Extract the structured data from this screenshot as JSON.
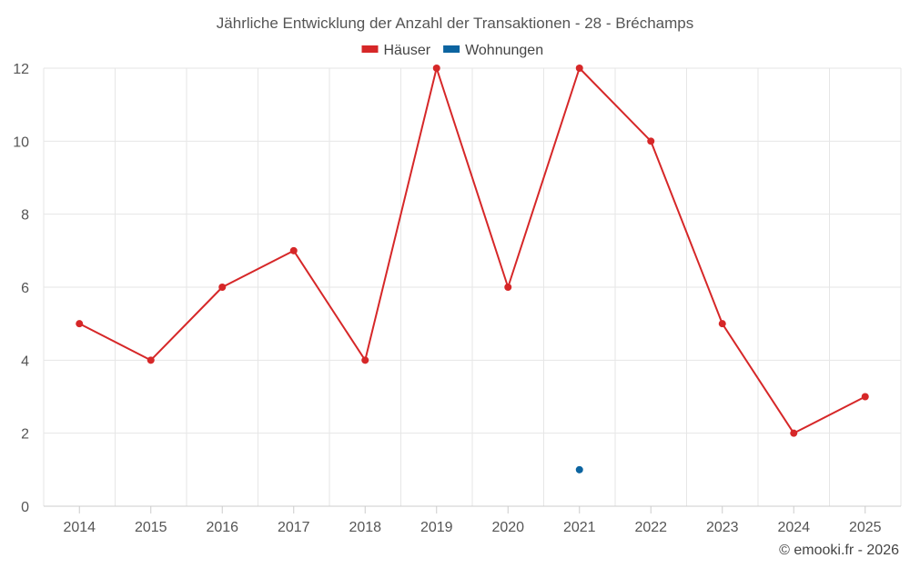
{
  "chart_data": {
    "type": "line",
    "title": "Jährliche Entwicklung der Anzahl der Transaktionen - 28 - Bréchamps",
    "xlabel": "",
    "ylabel": "",
    "categories": [
      "2014",
      "2015",
      "2016",
      "2017",
      "2018",
      "2019",
      "2020",
      "2021",
      "2022",
      "2023",
      "2024",
      "2025"
    ],
    "ylim": [
      0,
      12
    ],
    "yticks": [
      0,
      2,
      4,
      6,
      8,
      10,
      12
    ],
    "grid": true,
    "legend_position": "top-center",
    "series": [
      {
        "name": "Häuser",
        "color": "#d62728",
        "values": [
          5,
          4,
          6,
          7,
          4,
          12,
          6,
          12,
          10,
          5,
          2,
          3
        ]
      },
      {
        "name": "Wohnungen",
        "color": "#0c64a0",
        "values": [
          null,
          null,
          null,
          null,
          null,
          null,
          null,
          1,
          null,
          null,
          null,
          null
        ]
      }
    ]
  },
  "credit": "© emooki.fr - 2026"
}
